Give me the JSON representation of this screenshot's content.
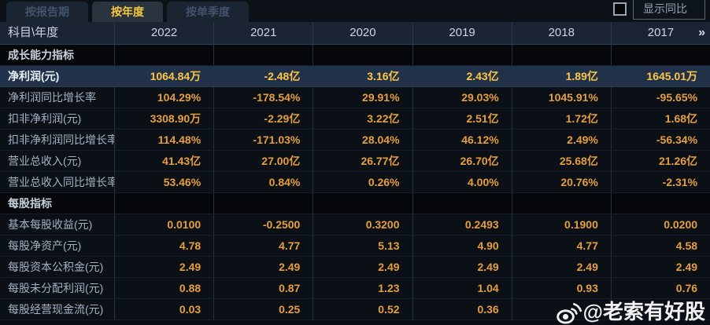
{
  "tabs": [
    {
      "label": "按报告期",
      "active": false
    },
    {
      "label": "按年度",
      "active": true
    },
    {
      "label": "按单季度",
      "active": false
    }
  ],
  "controls": {
    "show_yoy_label": "显示同比",
    "checkbox_checked": false
  },
  "table": {
    "corner_header": "科目\\年度",
    "years": [
      "2022",
      "2021",
      "2020",
      "2019",
      "2018",
      "2017"
    ],
    "more_label": "»",
    "rows": [
      {
        "type": "section",
        "label": "成长能力指标"
      },
      {
        "type": "data",
        "highlight": true,
        "label": "净利润(元)",
        "values": [
          "1064.84万",
          "-2.48亿",
          "3.16亿",
          "2.43亿",
          "1.89亿",
          "1645.01万"
        ]
      },
      {
        "type": "data",
        "label": "净利润同比增长率",
        "values": [
          "104.29%",
          "-178.54%",
          "29.91%",
          "29.03%",
          "1045.91%",
          "-95.65%"
        ]
      },
      {
        "type": "data",
        "label": "扣非净利润(元)",
        "values": [
          "3308.90万",
          "-2.29亿",
          "3.22亿",
          "2.51亿",
          "1.72亿",
          "1.68亿"
        ]
      },
      {
        "type": "data",
        "label": "扣非净利润同比增长率",
        "values": [
          "114.48%",
          "-171.03%",
          "28.04%",
          "46.12%",
          "2.49%",
          "-56.34%"
        ]
      },
      {
        "type": "data",
        "label": "营业总收入(元)",
        "values": [
          "41.43亿",
          "27.00亿",
          "26.77亿",
          "26.70亿",
          "25.68亿",
          "21.26亿"
        ]
      },
      {
        "type": "data",
        "label": "营业总收入同比增长率",
        "values": [
          "53.46%",
          "0.84%",
          "0.26%",
          "4.00%",
          "20.76%",
          "-2.31%"
        ]
      },
      {
        "type": "section",
        "label": "每股指标"
      },
      {
        "type": "data",
        "label": "基本每股收益(元)",
        "values": [
          "0.0100",
          "-0.2500",
          "0.3200",
          "0.2493",
          "0.1900",
          "0.0200"
        ]
      },
      {
        "type": "data",
        "label": "每股净资产(元)",
        "values": [
          "4.78",
          "4.77",
          "5.13",
          "4.90",
          "4.77",
          "4.58"
        ]
      },
      {
        "type": "data",
        "label": "每股资本公积金(元)",
        "values": [
          "2.49",
          "2.49",
          "2.49",
          "2.49",
          "2.49",
          "2.49"
        ]
      },
      {
        "type": "data",
        "label": "每股未分配利润(元)",
        "values": [
          "0.88",
          "0.87",
          "1.23",
          "1.04",
          "0.93",
          "0.76"
        ]
      },
      {
        "type": "data",
        "label": "每股经营现金流(元)",
        "values": [
          "0.03",
          "0.25",
          "0.52",
          "0.36",
          "",
          ""
        ]
      }
    ]
  },
  "watermark": {
    "text": "@老索有好股",
    "icon": "weibo-logo"
  },
  "colors": {
    "value_gold": "#e59f3d",
    "highlight_gold": "#ffc646",
    "active_tab_text": "#f8c73a",
    "highlight_row_bg": "#203149",
    "header_bg": "#1a2433"
  }
}
